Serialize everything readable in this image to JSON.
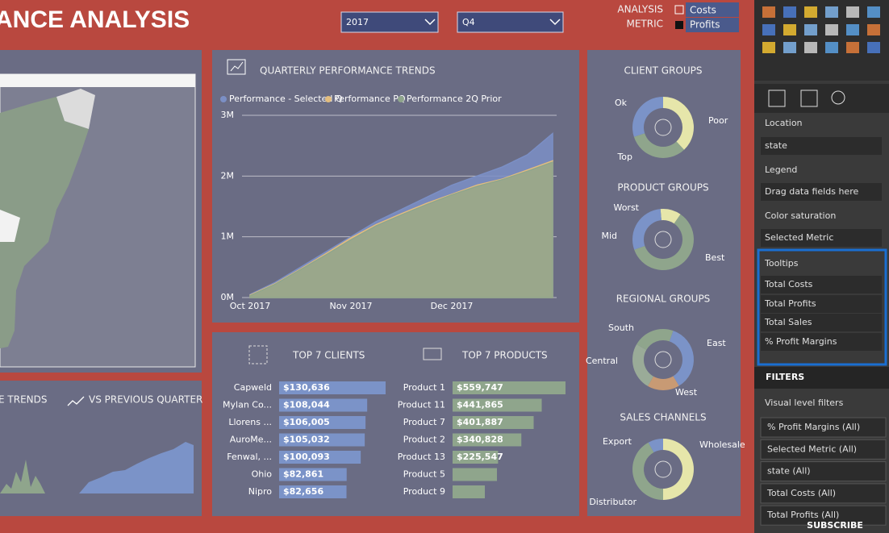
{
  "header": {
    "title": "ANCE ANALYSIS",
    "year": "2017",
    "quarter": "Q4",
    "selector_labels": [
      "ANALYSIS",
      "METRIC"
    ],
    "metrics": [
      "Costs",
      "Profits"
    ]
  },
  "trend_panel": {
    "titles": [
      "E TRENDS",
      "VS PREVIOUS QUARTER"
    ]
  },
  "chart_data": [
    {
      "type": "area",
      "title": "QUARTERLY PERFORMANCE TRENDS",
      "categories": [
        "Oct 2017",
        null,
        null,
        null,
        "Nov 2017",
        null,
        null,
        null,
        "Dec 2017",
        null,
        null,
        null,
        null
      ],
      "series": [
        {
          "name": "Performance - Selected Q",
          "color": "#7b8fc5",
          "values": [
            50000,
            250000,
            500000,
            750000,
            1000000,
            1250000,
            1450000,
            1650000,
            1850000,
            2000000,
            2150000,
            2350000,
            2700000
          ]
        },
        {
          "name": "Performance PQ",
          "color": "#e3bd7e",
          "values": [
            40000,
            230000,
            470000,
            720000,
            980000,
            1200000,
            1380000,
            1550000,
            1700000,
            1850000,
            1950000,
            2100000,
            2250000
          ]
        },
        {
          "name": "Performance 2Q Prior",
          "color": "#8fa58c",
          "values": [
            30000,
            220000,
            460000,
            700000,
            950000,
            1180000,
            1360000,
            1530000,
            1690000,
            1830000,
            1940000,
            2080000,
            2230000
          ]
        }
      ],
      "ylim": [
        0,
        3000000
      ],
      "yticks": [
        {
          "value": 0,
          "label": "0M"
        },
        {
          "value": 1000000,
          "label": "1M"
        },
        {
          "value": 2000000,
          "label": "2M"
        },
        {
          "value": 3000000,
          "label": "3M"
        }
      ],
      "grid": true
    },
    {
      "type": "donut",
      "title": "CLIENT GROUPS",
      "categories": [
        "Ok",
        "Poor",
        "Top"
      ],
      "values": [
        30,
        38,
        32
      ],
      "colors": [
        "#7b93c8",
        "#e6e6aa",
        "#8fa58c"
      ]
    },
    {
      "type": "donut",
      "title": "PRODUCT GROUPS",
      "categories": [
        "Worst",
        "Best",
        "Mid"
      ],
      "values": [
        11,
        60,
        29
      ],
      "colors": [
        "#e6e6aa",
        "#8fa58c",
        "#7b93c8"
      ]
    },
    {
      "type": "donut",
      "title": "REGIONAL GROUPS",
      "categories": [
        "South",
        "East",
        "West",
        "Central"
      ],
      "values": [
        22,
        36,
        17,
        25
      ],
      "colors": [
        "#8fa58c",
        "#7b93c8",
        "#c89a74",
        "#9aab98"
      ]
    },
    {
      "type": "donut",
      "title": "SALES CHANNELS",
      "categories": [
        "Wholesale",
        "Distributor",
        "Export"
      ],
      "values": [
        50,
        42,
        8
      ],
      "colors": [
        "#e6e6aa",
        "#8fa58c",
        "#7b93c8"
      ]
    },
    {
      "type": "hbar",
      "title": "TOP 7 CLIENTS",
      "categories": [
        "Capweld",
        "Mylan Co...",
        "Llorens ...",
        "AuroMe...",
        "Fenwal, ...",
        "Ohio",
        "Nipro"
      ],
      "values": [
        130636,
        108044,
        106005,
        105032,
        100093,
        82861,
        82656
      ],
      "value_labels": [
        "$130,636",
        "$108,044",
        "$106,005",
        "$105,032",
        "$100,093",
        "$82,861",
        "$82,656"
      ],
      "color": "#7b93c8"
    },
    {
      "type": "hbar",
      "title": "TOP 7 PRODUCTS",
      "categories": [
        "Product 1",
        "Product 11",
        "Product 7",
        "Product 2",
        "Product 13",
        "Product 5",
        "Product 9"
      ],
      "values": [
        559747,
        441865,
        401887,
        340828,
        225547,
        220000,
        160000
      ],
      "value_labels": [
        "$559,747",
        "$441,865",
        "$401,887",
        "$340,828",
        "$225,547",
        null,
        null
      ],
      "color": "#8fa58c"
    }
  ],
  "pane": {
    "fields": [
      {
        "label": "Location",
        "items": [
          "state"
        ]
      },
      {
        "label": "Legend",
        "items": [
          "Drag data fields here"
        ]
      },
      {
        "label": "Color saturation",
        "items": [
          "Selected Metric"
        ]
      },
      {
        "label": "Tooltips",
        "items": [
          "Total Costs",
          "Total Profits",
          "Total Sales",
          "% Profit Margins"
        ]
      }
    ],
    "filters_title": "FILTERS",
    "filters_subtitle": "Visual level filters",
    "filters": [
      "% Profit Margins (All)",
      "Selected Metric (All)",
      "state (All)",
      "Total Costs (All)",
      "Total Profits (All)"
    ],
    "watermark": "SUBSCRIBE"
  }
}
